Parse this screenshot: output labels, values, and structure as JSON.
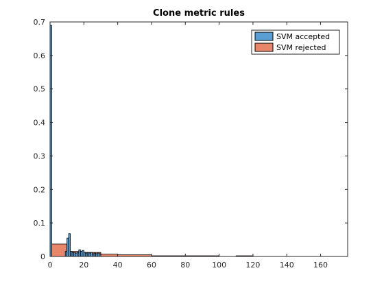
{
  "chart_data": {
    "type": "bar",
    "title": "Clone metric rules",
    "xlabel": "",
    "ylabel": "",
    "xlim": [
      0,
      176
    ],
    "ylim": [
      0,
      0.7
    ],
    "xticks": [
      "0",
      "20",
      "40",
      "60",
      "80",
      "100",
      "120",
      "140",
      "160"
    ],
    "yticks": [
      "0",
      "0.1",
      "0.2",
      "0.3",
      "0.4",
      "0.5",
      "0.6",
      "0.7"
    ],
    "grid": false,
    "legend_position": "top-right",
    "series": [
      {
        "name": "SVM accepted",
        "color": "#5a9fd4",
        "bins": [
          {
            "x0": 0,
            "x1": 1,
            "y": 0.69
          },
          {
            "x0": 9,
            "x1": 10,
            "y": 0.015
          },
          {
            "x0": 10,
            "x1": 11,
            "y": 0.055
          },
          {
            "x0": 11,
            "x1": 12,
            "y": 0.068
          },
          {
            "x0": 12,
            "x1": 13,
            "y": 0.015
          },
          {
            "x0": 13,
            "x1": 14,
            "y": 0.012
          },
          {
            "x0": 14,
            "x1": 15,
            "y": 0.012
          },
          {
            "x0": 15,
            "x1": 16,
            "y": 0.01
          },
          {
            "x0": 16,
            "x1": 17,
            "y": 0.012
          },
          {
            "x0": 17,
            "x1": 18,
            "y": 0.02
          },
          {
            "x0": 18,
            "x1": 19,
            "y": 0.015
          },
          {
            "x0": 19,
            "x1": 20,
            "y": 0.018
          },
          {
            "x0": 20,
            "x1": 21,
            "y": 0.012
          },
          {
            "x0": 21,
            "x1": 22,
            "y": 0.01
          },
          {
            "x0": 22,
            "x1": 23,
            "y": 0.012
          },
          {
            "x0": 23,
            "x1": 24,
            "y": 0.01
          },
          {
            "x0": 24,
            "x1": 25,
            "y": 0.012
          },
          {
            "x0": 25,
            "x1": 26,
            "y": 0.008
          },
          {
            "x0": 26,
            "x1": 27,
            "y": 0.01
          },
          {
            "x0": 27,
            "x1": 28,
            "y": 0.008
          },
          {
            "x0": 28,
            "x1": 29,
            "y": 0.01
          },
          {
            "x0": 29,
            "x1": 30,
            "y": 0.008
          }
        ]
      },
      {
        "name": "SVM rejected",
        "color": "#e8866a",
        "bins": [
          {
            "x0": 0,
            "x1": 10,
            "y": 0.037
          },
          {
            "x0": 10,
            "x1": 20,
            "y": 0.015
          },
          {
            "x0": 20,
            "x1": 30,
            "y": 0.012
          },
          {
            "x0": 30,
            "x1": 40,
            "y": 0.007
          },
          {
            "x0": 40,
            "x1": 60,
            "y": 0.005
          },
          {
            "x0": 60,
            "x1": 100,
            "y": 0.002
          },
          {
            "x0": 110,
            "x1": 120,
            "y": 0.002
          }
        ]
      }
    ]
  }
}
